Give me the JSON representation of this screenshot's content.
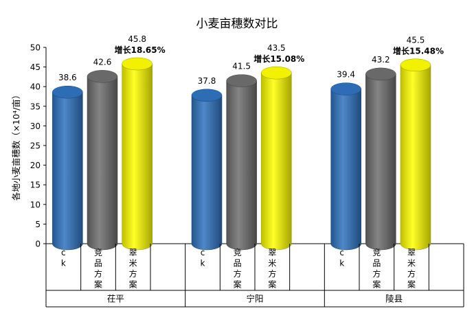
{
  "chart_data": {
    "type": "bar",
    "title": "小麦亩穗数对比",
    "xlabel": "",
    "ylabel": "各地小麦亩穗数（×10⁴/亩）",
    "ylim": [
      0,
      50
    ],
    "yticks": [
      0,
      5,
      10,
      15,
      20,
      25,
      30,
      35,
      40,
      45,
      50
    ],
    "grid": false,
    "legend": "none",
    "groups": [
      {
        "name": "茌平",
        "bars": [
          {
            "category": "c k",
            "value": 38.6,
            "value_label": "38.6",
            "note": ""
          },
          {
            "category": "竞品方案",
            "value": 42.6,
            "value_label": "42.6",
            "note": ""
          },
          {
            "category": "翠米方案",
            "value": 45.8,
            "value_label": "45.8",
            "note": "增长18.65%"
          }
        ]
      },
      {
        "name": "宁阳",
        "bars": [
          {
            "category": "c k",
            "value": 37.8,
            "value_label": "37.8",
            "note": ""
          },
          {
            "category": "竞品方案",
            "value": 41.5,
            "value_label": "41.5",
            "note": ""
          },
          {
            "category": "翠米方案",
            "value": 43.5,
            "value_label": "43.5",
            "note": "增长15.08%"
          }
        ]
      },
      {
        "name": "陵县",
        "bars": [
          {
            "category": "c k",
            "value": 39.4,
            "value_label": "39.4",
            "note": ""
          },
          {
            "category": "竞品方案",
            "value": 43.2,
            "value_label": "43.2",
            "note": ""
          },
          {
            "category": "翠米方案",
            "value": 45.5,
            "value_label": "45.5",
            "note": "增长15.48%"
          }
        ]
      }
    ],
    "colors": {
      "c k": "#2f73c0",
      "竞品方案": "#6e6e6e",
      "翠米方案": "#ffff00",
      "note": "#ff0000"
    }
  }
}
